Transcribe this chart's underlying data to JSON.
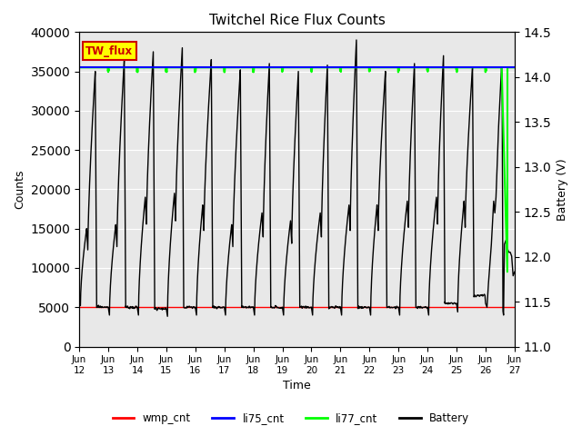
{
  "title": "Twitchel Rice Flux Counts",
  "xlabel": "Time",
  "ylabel_left": "Counts",
  "ylabel_right": "Battery (V)",
  "ylim_left": [
    0,
    40000
  ],
  "ylim_right": [
    11.0,
    14.5
  ],
  "yticks_left": [
    0,
    5000,
    10000,
    15000,
    20000,
    25000,
    30000,
    35000,
    40000
  ],
  "yticks_right": [
    11.0,
    11.5,
    12.0,
    12.5,
    13.0,
    13.5,
    14.0,
    14.5
  ],
  "xtick_labels": [
    "Jun\n12",
    "Jun\n13",
    "Jun\n14",
    "Jun\n15",
    "Jun\n16",
    "Jun\n17",
    "Jun\n18",
    "Jun\n19",
    "Jun\n20",
    "Jun\n21",
    "Jun\n22",
    "Jun\n23",
    "Jun\n24",
    "Jun\n25",
    "Jun\n26",
    "Jun\n27"
  ],
  "bg_color": "#e8e8e8",
  "grid_color": "#ffffff",
  "li77_level": 35500,
  "li77_color": "#00ff00",
  "battery_color": "#000000",
  "wmp_color": "#ff0000",
  "li75_color": "#0000ff",
  "tw_flux_box_color": "#ffff00",
  "tw_flux_text_color": "#cc0000",
  "fig_bg": "#ffffff"
}
